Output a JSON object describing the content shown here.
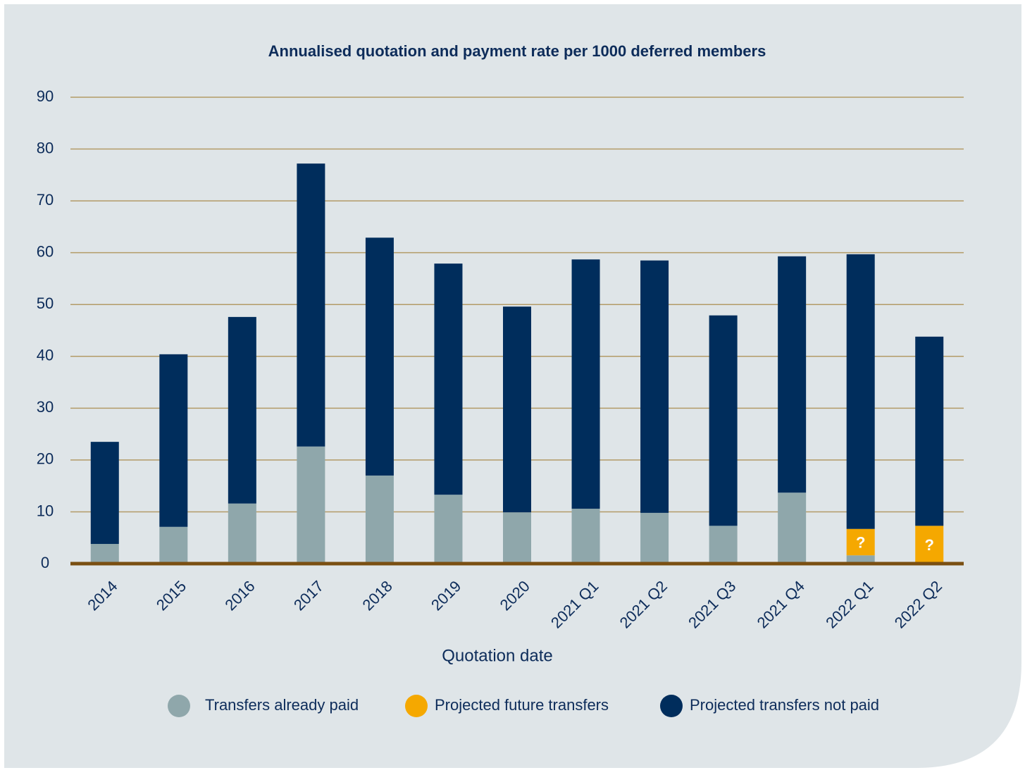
{
  "chart_data": {
    "type": "stacked_bar",
    "title": "Annualised quotation and payment rate per 1000 deferred members",
    "x_label": "Quotation date",
    "categories": [
      "2014",
      "2015",
      "2016",
      "2017",
      "2018",
      "2019",
      "2020",
      "2021 Q1",
      "2021 Q2",
      "2021 Q3",
      "2021 Q4",
      "2022 Q1",
      "2022 Q2"
    ],
    "series": [
      {
        "name": "Transfers already paid",
        "color": "#8fa7ab",
        "values": [
          3.8,
          7.1,
          11.6,
          22.6,
          17.0,
          13.3,
          9.9,
          10.6,
          9.8,
          7.3,
          13.7,
          1.6,
          0
        ]
      },
      {
        "name": "Projected future transfers",
        "color": "#f5a800",
        "values": [
          0,
          0,
          0,
          0,
          0,
          0,
          0,
          0,
          0,
          0,
          0,
          5.1,
          7.3
        ]
      },
      {
        "name": "Projected transfers not paid",
        "color": "#002d5c",
        "values": [
          19.7,
          33.3,
          36.0,
          54.6,
          45.9,
          44.6,
          39.7,
          48.1,
          48.7,
          40.6,
          45.6,
          53.0,
          36.5
        ]
      }
    ],
    "future_marker": "?",
    "ylim": [
      0,
      90
    ],
    "yticks": [
      0,
      10,
      20,
      30,
      40,
      50,
      60,
      70,
      80,
      90
    ],
    "grid": true,
    "legend": "bottom"
  }
}
